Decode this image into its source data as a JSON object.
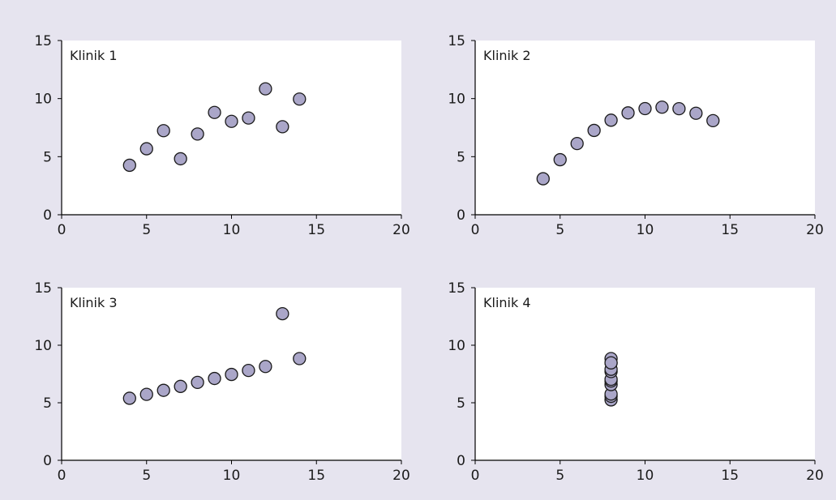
{
  "colors": {
    "background": "#e6e4ef",
    "plot_area": "#ffffff",
    "marker_fill": "#aaa6c8",
    "marker_stroke": "#1a1a1a"
  },
  "chart_data": [
    {
      "type": "scatter",
      "title": "Klinik 1",
      "xlim": [
        0,
        20
      ],
      "ylim": [
        0,
        15
      ],
      "xticks": [
        0,
        5,
        10,
        15,
        20
      ],
      "yticks": [
        0,
        5,
        10,
        15
      ],
      "grid": false,
      "x": [
        4,
        5,
        6,
        7,
        8,
        9,
        10,
        11,
        12,
        13,
        14
      ],
      "y": [
        4.26,
        5.68,
        7.24,
        4.82,
        6.95,
        8.81,
        8.04,
        8.33,
        10.84,
        7.58,
        9.96
      ]
    },
    {
      "type": "scatter",
      "title": "Klinik 2",
      "xlim": [
        0,
        20
      ],
      "ylim": [
        0,
        15
      ],
      "xticks": [
        0,
        5,
        10,
        15,
        20
      ],
      "yticks": [
        0,
        5,
        10,
        15
      ],
      "grid": false,
      "x": [
        4,
        5,
        6,
        7,
        8,
        9,
        10,
        11,
        12,
        13,
        14
      ],
      "y": [
        3.1,
        4.74,
        6.13,
        7.26,
        8.14,
        8.77,
        9.14,
        9.26,
        9.13,
        8.74,
        8.1
      ]
    },
    {
      "type": "scatter",
      "title": "Klinik 3",
      "xlim": [
        0,
        20
      ],
      "ylim": [
        0,
        15
      ],
      "xticks": [
        0,
        5,
        10,
        15,
        20
      ],
      "yticks": [
        0,
        5,
        10,
        15
      ],
      "grid": false,
      "x": [
        4,
        5,
        6,
        7,
        8,
        9,
        10,
        11,
        12,
        13,
        14
      ],
      "y": [
        5.39,
        5.73,
        6.08,
        6.42,
        6.77,
        7.11,
        7.46,
        7.81,
        8.15,
        12.74,
        8.84
      ]
    },
    {
      "type": "scatter",
      "title": "Klinik 4",
      "xlim": [
        0,
        20
      ],
      "ylim": [
        0,
        15
      ],
      "xticks": [
        0,
        5,
        10,
        15,
        20
      ],
      "yticks": [
        0,
        5,
        10,
        15
      ],
      "grid": false,
      "x": [
        8,
        8,
        8,
        8,
        8,
        8,
        8,
        8,
        8,
        8,
        8
      ],
      "y": [
        5.25,
        5.56,
        5.76,
        6.58,
        6.89,
        7.04,
        7.71,
        7.91,
        8.47,
        8.84,
        8.47
      ]
    }
  ]
}
